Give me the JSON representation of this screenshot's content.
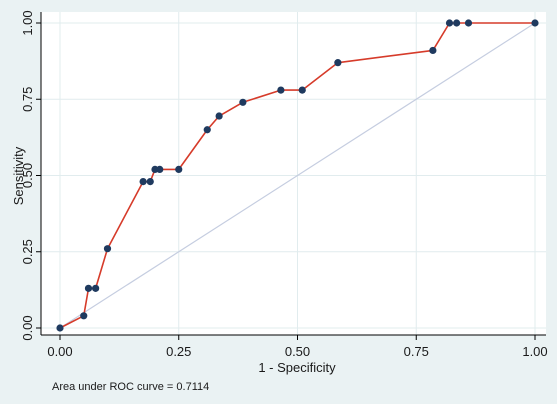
{
  "chart_data": {
    "type": "line",
    "title": "",
    "xlabel": "1 - Specificity",
    "ylabel": "Sensitivity",
    "xlim": [
      0,
      1
    ],
    "ylim": [
      0,
      1
    ],
    "xticks": [
      0,
      0.25,
      0.5,
      0.75,
      1
    ],
    "yticks": [
      0,
      0.25,
      0.5,
      0.75,
      1
    ],
    "xtick_labels": [
      "0.00",
      "0.25",
      "0.50",
      "0.75",
      "1.00"
    ],
    "ytick_labels": [
      "0.00",
      "0.25",
      "0.50",
      "0.75",
      "1.00"
    ],
    "grid": true,
    "legend": "none",
    "series": [
      {
        "x": [
          0,
          0.05,
          0.06,
          0.075,
          0.1,
          0.175,
          0.19,
          0.2,
          0.21,
          0.25,
          0.31,
          0.335,
          0.385,
          0.465,
          0.51,
          0.585,
          0.785,
          0.82,
          0.835,
          0.86,
          1.0
        ],
        "y": [
          0,
          0.04,
          0.13,
          0.13,
          0.26,
          0.48,
          0.48,
          0.52,
          0.52,
          0.52,
          0.65,
          0.695,
          0.74,
          0.78,
          0.78,
          0.87,
          0.91,
          1.0,
          1.0,
          1.0,
          1.0
        ],
        "color": "#d63b2a",
        "marker_color": "#1f3a5f"
      }
    ],
    "reference_line": {
      "x": [
        0,
        1
      ],
      "y": [
        0,
        1
      ],
      "color": "#c5cde0"
    },
    "annotation": "Area under ROC curve = 0.7114",
    "colors": {
      "background": "#eaf2f3",
      "plot_area": "#ffffff",
      "grid": "#e1ecee",
      "curve": "#d63b2a",
      "markers": "#1f3a5f",
      "reference": "#c5cde0"
    }
  }
}
